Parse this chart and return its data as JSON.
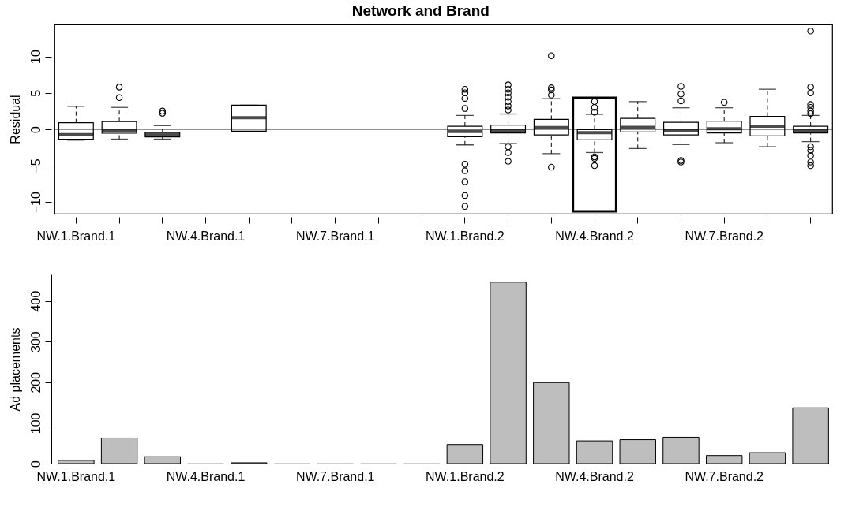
{
  "chart_data": [
    {
      "type": "box",
      "title": "Network and Brand",
      "ylabel": "Residual",
      "categories": [
        "NW.1.Brand.1",
        null,
        null,
        "NW.4.Brand.1",
        null,
        null,
        "NW.7.Brand.1",
        null,
        null,
        "NW.1.Brand.2",
        null,
        null,
        "NW.4.Brand.2",
        null,
        null,
        "NW.7.Brand.2",
        null,
        null
      ],
      "boxes": [
        {
          "low": -1.5,
          "q1": -1.36,
          "median": -0.74,
          "q3": 0.9,
          "high": 3.15
        },
        {
          "low": -1.36,
          "q1": -0.55,
          "median": -0.15,
          "q3": 1.05,
          "high": 3.0,
          "outliers": [
            5.8,
            4.35
          ]
        },
        {
          "low": -1.36,
          "q1": -1.05,
          "median": -0.78,
          "q3": -0.47,
          "high": 0.5,
          "outliers": [
            2.5,
            2.2
          ]
        },
        null,
        {
          "low": -0.27,
          "q1": -0.27,
          "median": 1.6,
          "q3": 3.3,
          "high": 3.3
        },
        null,
        null,
        null,
        null,
        {
          "low": -2.15,
          "q1": -1.04,
          "median": -0.3,
          "q3": 0.42,
          "high": 1.9,
          "outliers": [
            5.5,
            5.0,
            4.25,
            2.85,
            -4.8,
            -5.7,
            -7.2,
            -9.1,
            -10.6
          ]
        },
        {
          "low": -1.96,
          "q1": -0.5,
          "median": -0.19,
          "q3": 0.58,
          "high": 2.1,
          "outliers": [
            6.1,
            5.5,
            5.0,
            4.4,
            3.8,
            3.2,
            2.65,
            -2.4,
            -3.2,
            -4.4
          ]
        },
        {
          "low": -3.35,
          "q1": -0.77,
          "median": 0.23,
          "q3": 1.35,
          "high": 4.2,
          "outliers": [
            10.1,
            5.7,
            5.4,
            4.7,
            -5.2
          ]
        },
        {
          "low": -3.2,
          "q1": -1.46,
          "median": -0.46,
          "q3": -0.04,
          "high": 2.05,
          "outliers": [
            3.8,
            3.0,
            2.35,
            -3.8,
            -4.0,
            -5.0
          ]
        },
        {
          "low": -2.65,
          "q1": -0.38,
          "median": 0.27,
          "q3": 1.5,
          "high": 3.8
        },
        {
          "low": -2.1,
          "q1": -0.77,
          "median": -0.15,
          "q3": 0.96,
          "high": 2.95,
          "outliers": [
            5.9,
            4.85,
            3.9,
            -4.3,
            -4.5
          ]
        },
        {
          "low": -1.85,
          "q1": -0.5,
          "median": 0.08,
          "q3": 1.1,
          "high": 2.95,
          "outliers": [
            3.7
          ]
        },
        {
          "low": -2.4,
          "q1": -0.92,
          "median": 0.42,
          "q3": 1.77,
          "high": 5.5
        },
        {
          "low": -1.7,
          "q1": -0.5,
          "median": -0.19,
          "q3": 0.42,
          "high": 1.9,
          "outliers": [
            13.5,
            5.8,
            5.0,
            3.4,
            3.0,
            2.5,
            2.15,
            -2.4,
            -2.9,
            -3.6,
            -4.5,
            -5.0
          ]
        }
      ],
      "ylim": [
        -11.6,
        14.4
      ],
      "yticks": [
        -10,
        -5,
        0,
        5,
        10
      ],
      "ref_lines": [
        {
          "axis": "y",
          "value": 0
        }
      ]
    },
    {
      "type": "bar",
      "ylabel": "Ad placements",
      "categories": [
        "NW.1.Brand.1",
        null,
        null,
        "NW.4.Brand.1",
        null,
        null,
        "NW.7.Brand.1",
        null,
        null,
        "NW.1.Brand.2",
        null,
        null,
        "NW.4.Brand.2",
        null,
        null,
        "NW.7.Brand.2",
        null,
        null
      ],
      "values": [
        8,
        63,
        17,
        0,
        2,
        0,
        0,
        0,
        0,
        47,
        446,
        199,
        56,
        59,
        65,
        20,
        27,
        137
      ],
      "color": "#bebebe",
      "ylim": [
        0,
        465
      ],
      "yticks": [
        0,
        100,
        200,
        300,
        400
      ]
    }
  ]
}
